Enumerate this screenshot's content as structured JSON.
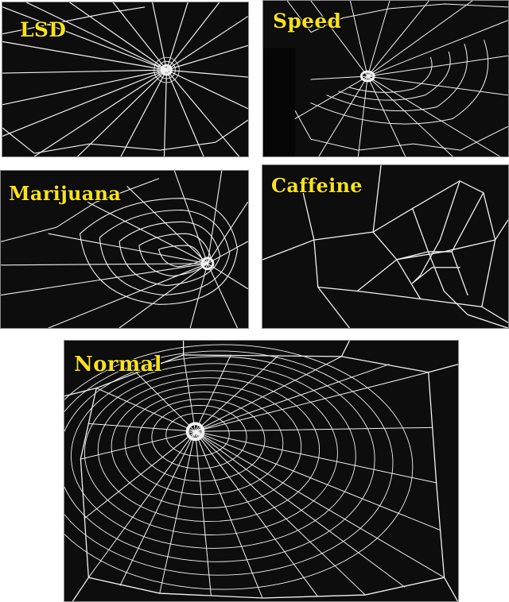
{
  "panels": {
    "lsd": {
      "label": "LSD"
    },
    "speed": {
      "label": "Speed"
    },
    "marijuana": {
      "label": "Marijuana"
    },
    "caffeine": {
      "label": "Caffeine"
    },
    "normal": {
      "label": "Normal"
    }
  },
  "colors": {
    "label_text": "#f7e21a",
    "photo_background": "#0d0d0d",
    "web_silk": "#f2f2f2"
  }
}
